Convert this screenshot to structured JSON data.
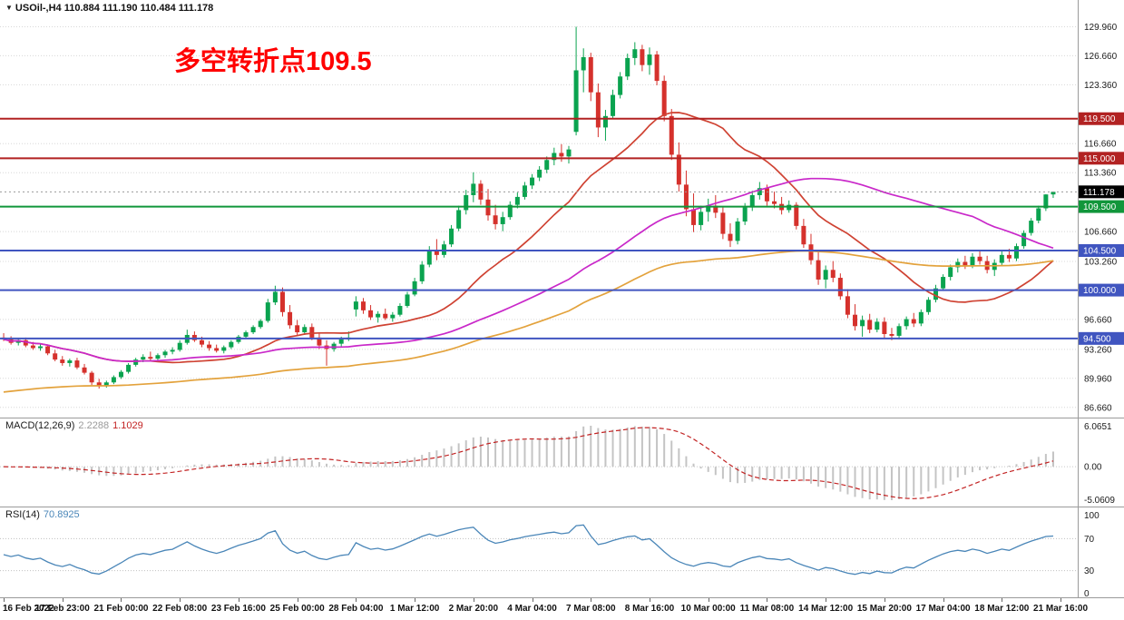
{
  "title_bar": {
    "collapse_icon": "▼",
    "symbol": "USOil-,H4",
    "ohlc_text": "110.884 111.190 110.484 111.178"
  },
  "annotation": {
    "text": "多空转折点109.5",
    "color": "#ff0000"
  },
  "chart_data": {
    "type": "candlestick",
    "symbol": "USOil",
    "timeframe": "H4",
    "current": {
      "open": 110.884,
      "high": 111.19,
      "low": 110.484,
      "close": 111.178
    },
    "current_price_label": "111.178",
    "price_axis": {
      "min": 85.5,
      "max": 133.0,
      "ticks": [
        "129.960",
        "126.660",
        "123.360",
        "116.660",
        "113.360",
        "106.660",
        "103.260",
        "96.660",
        "93.260",
        "89.960",
        "86.660"
      ]
    },
    "hlines": [
      {
        "price": 119.5,
        "label": "119.500",
        "color": "#b22222"
      },
      {
        "price": 115.0,
        "label": "115.000",
        "color": "#b22222"
      },
      {
        "price": 109.5,
        "label": "109.500",
        "color": "#11963b"
      },
      {
        "price": 104.5,
        "label": "104.500",
        "color": "#4055c0"
      },
      {
        "price": 100.0,
        "label": "100.000",
        "color": "#4055c0"
      },
      {
        "price": 94.5,
        "label": "94.500",
        "color": "#4055c0"
      }
    ],
    "overlays": [
      {
        "name": "ma-fast-red-line",
        "type": "sma",
        "period": 21,
        "color": "#cf4232"
      },
      {
        "name": "ma-mid-magenta-line",
        "type": "sma",
        "period": 55,
        "color": "#c928c9"
      },
      {
        "name": "ma-slow-orange-line",
        "type": "ema",
        "period": 120,
        "seed": 88.3,
        "color": "#e3a23c"
      }
    ],
    "colors": {
      "bull": "#0aa34f",
      "bear": "#d5312c",
      "grid": "#d8d8d8",
      "axis_border": "#9b9b9b",
      "current_badge": "#000000"
    },
    "x_label_step": 8,
    "x_labels": [
      "16 Feb 2022",
      "17 Feb 23:00",
      "21 Feb 00:00",
      "22 Feb 08:00",
      "23 Feb 16:00",
      "25 Feb 00:00",
      "28 Feb 04:00",
      "1 Mar 12:00",
      "2 Mar 20:00",
      "4 Mar 04:00",
      "7 Mar 08:00",
      "8 Mar 16:00",
      "10 Mar 00:00",
      "11 Mar 08:00",
      "14 Mar 12:00",
      "15 Mar 20:00",
      "17 Mar 04:00",
      "18 Mar 12:00",
      "21 Mar 16:00"
    ],
    "candles": [
      [
        94.6,
        95.1,
        94.2,
        94.4
      ],
      [
        94.4,
        94.75,
        93.8,
        94.0
      ],
      [
        94.0,
        94.5,
        93.7,
        94.3
      ],
      [
        94.3,
        94.6,
        93.5,
        93.7
      ],
      [
        93.7,
        94.1,
        93.2,
        93.4
      ],
      [
        93.4,
        93.9,
        93.1,
        93.6
      ],
      [
        93.6,
        93.8,
        92.6,
        92.8
      ],
      [
        92.8,
        93.2,
        91.9,
        92.1
      ],
      [
        92.1,
        92.5,
        91.4,
        91.7
      ],
      [
        91.7,
        92.2,
        91.3,
        92.0
      ],
      [
        92.0,
        92.3,
        91.0,
        91.2
      ],
      [
        91.2,
        91.6,
        90.4,
        90.6
      ],
      [
        90.6,
        90.8,
        89.2,
        89.5
      ],
      [
        89.5,
        89.9,
        88.8,
        89.1
      ],
      [
        89.1,
        89.7,
        88.9,
        89.5
      ],
      [
        89.5,
        90.3,
        89.3,
        90.1
      ],
      [
        90.1,
        90.9,
        89.9,
        90.7
      ],
      [
        90.7,
        91.7,
        90.5,
        91.5
      ],
      [
        91.5,
        92.3,
        91.3,
        92.1
      ],
      [
        92.1,
        92.7,
        91.8,
        92.4
      ],
      [
        92.4,
        93.0,
        92.0,
        92.2
      ],
      [
        92.2,
        92.8,
        91.9,
        92.6
      ],
      [
        92.6,
        93.2,
        92.3,
        93.0
      ],
      [
        93.0,
        93.5,
        92.7,
        93.2
      ],
      [
        93.2,
        94.3,
        93.0,
        94.0
      ],
      [
        94.0,
        95.5,
        93.8,
        94.9
      ],
      [
        94.9,
        95.3,
        94.1,
        94.3
      ],
      [
        94.3,
        94.7,
        93.5,
        93.8
      ],
      [
        93.8,
        94.2,
        93.1,
        93.4
      ],
      [
        93.4,
        93.8,
        92.9,
        93.1
      ],
      [
        93.1,
        93.7,
        92.8,
        93.5
      ],
      [
        93.5,
        94.3,
        93.3,
        94.1
      ],
      [
        94.1,
        94.9,
        93.9,
        94.7
      ],
      [
        94.7,
        95.4,
        94.5,
        95.2
      ],
      [
        95.2,
        96.0,
        95.0,
        95.8
      ],
      [
        95.8,
        96.7,
        95.6,
        96.5
      ],
      [
        96.5,
        99.0,
        96.3,
        98.6
      ],
      [
        98.6,
        100.5,
        98.3,
        99.8
      ],
      [
        99.8,
        100.3,
        97.0,
        97.5
      ],
      [
        97.5,
        98.3,
        95.6,
        96.0
      ],
      [
        96.0,
        96.6,
        94.8,
        95.2
      ],
      [
        95.2,
        96.1,
        94.9,
        95.8
      ],
      [
        95.8,
        96.2,
        94.3,
        94.6
      ],
      [
        94.6,
        95.1,
        93.3,
        93.7
      ],
      [
        93.7,
        94.3,
        91.4,
        93.3
      ],
      [
        93.3,
        94.1,
        93.0,
        93.9
      ],
      [
        93.9,
        94.7,
        93.6,
        94.4
      ],
      [
        94.4,
        95.3,
        94.2,
        94.6
      ],
      [
        97.8,
        99.3,
        97.0,
        98.7
      ],
      [
        98.7,
        99.1,
        97.3,
        97.7
      ],
      [
        97.7,
        98.3,
        96.6,
        96.9
      ],
      [
        96.9,
        97.6,
        96.3,
        97.3
      ],
      [
        97.3,
        97.9,
        96.6,
        96.8
      ],
      [
        96.8,
        97.5,
        96.4,
        97.2
      ],
      [
        97.2,
        98.5,
        97.0,
        98.2
      ],
      [
        98.2,
        99.8,
        98.0,
        99.5
      ],
      [
        99.5,
        101.4,
        99.3,
        101.0
      ],
      [
        101.0,
        103.3,
        100.7,
        102.9
      ],
      [
        102.9,
        105.0,
        102.6,
        104.5
      ],
      [
        104.5,
        105.8,
        103.4,
        104.0
      ],
      [
        104.0,
        105.6,
        103.7,
        105.2
      ],
      [
        105.2,
        107.4,
        104.9,
        107.0
      ],
      [
        107.0,
        109.6,
        106.7,
        109.1
      ],
      [
        109.1,
        111.4,
        108.6,
        110.8
      ],
      [
        110.8,
        113.4,
        110.0,
        112.1
      ],
      [
        112.1,
        112.5,
        109.7,
        110.3
      ],
      [
        110.3,
        111.5,
        107.9,
        108.5
      ],
      [
        108.5,
        109.7,
        106.9,
        107.5
      ],
      [
        107.5,
        108.9,
        106.7,
        108.3
      ],
      [
        108.3,
        110.1,
        108.0,
        109.7
      ],
      [
        109.7,
        111.1,
        109.3,
        110.6
      ],
      [
        110.6,
        112.3,
        110.3,
        111.9
      ],
      [
        111.9,
        113.2,
        111.5,
        112.8
      ],
      [
        112.8,
        114.1,
        112.4,
        113.7
      ],
      [
        113.7,
        115.2,
        113.3,
        114.8
      ],
      [
        114.8,
        116.2,
        114.2,
        115.6
      ],
      [
        115.6,
        116.6,
        114.6,
        115.2
      ],
      [
        115.2,
        116.4,
        114.4,
        116.0
      ],
      [
        118.0,
        129.96,
        117.6,
        125.0
      ],
      [
        125.0,
        127.5,
        122.5,
        126.5
      ],
      [
        126.5,
        127.0,
        121.5,
        122.5
      ],
      [
        122.5,
        123.5,
        117.4,
        118.5
      ],
      [
        118.5,
        120.5,
        117.0,
        119.8
      ],
      [
        119.8,
        122.8,
        119.5,
        122.2
      ],
      [
        122.2,
        124.8,
        121.8,
        124.3
      ],
      [
        124.3,
        126.9,
        123.9,
        126.4
      ],
      [
        126.4,
        128.2,
        125.6,
        127.4
      ],
      [
        127.4,
        127.9,
        124.9,
        125.6
      ],
      [
        125.6,
        127.6,
        124.5,
        126.8
      ],
      [
        126.8,
        127.2,
        123.3,
        123.8
      ],
      [
        123.8,
        124.4,
        119.2,
        119.8
      ],
      [
        119.8,
        120.6,
        114.8,
        115.4
      ],
      [
        115.4,
        116.8,
        111.2,
        112.0
      ],
      [
        112.0,
        113.6,
        108.4,
        109.2
      ],
      [
        109.2,
        111.0,
        106.6,
        107.4
      ],
      [
        107.4,
        109.6,
        106.8,
        108.9
      ],
      [
        108.9,
        110.4,
        107.8,
        109.6
      ],
      [
        109.6,
        110.8,
        108.2,
        108.8
      ],
      [
        108.8,
        109.4,
        105.8,
        106.4
      ],
      [
        106.4,
        107.6,
        104.9,
        105.6
      ],
      [
        105.6,
        108.2,
        105.2,
        107.8
      ],
      [
        107.8,
        109.9,
        107.4,
        109.4
      ],
      [
        109.4,
        111.3,
        109.0,
        110.8
      ],
      [
        110.8,
        112.3,
        110.3,
        111.6
      ],
      [
        111.6,
        112.0,
        109.6,
        110.1
      ],
      [
        110.1,
        111.2,
        109.3,
        109.8
      ],
      [
        109.8,
        110.6,
        108.6,
        109.1
      ],
      [
        109.1,
        110.2,
        108.8,
        109.7
      ],
      [
        109.7,
        110.0,
        106.9,
        107.3
      ],
      [
        107.3,
        108.1,
        104.8,
        105.2
      ],
      [
        105.2,
        106.4,
        102.9,
        103.4
      ],
      [
        103.4,
        104.6,
        100.6,
        101.2
      ],
      [
        101.2,
        102.8,
        100.2,
        102.3
      ],
      [
        102.3,
        103.3,
        100.9,
        101.4
      ],
      [
        101.4,
        101.9,
        98.9,
        99.3
      ],
      [
        99.3,
        100.1,
        96.8,
        97.2
      ],
      [
        97.2,
        98.4,
        95.4,
        95.9
      ],
      [
        95.9,
        97.1,
        94.7,
        96.6
      ],
      [
        96.6,
        97.3,
        95.1,
        95.5
      ],
      [
        95.5,
        96.8,
        95.2,
        96.4
      ],
      [
        96.4,
        96.9,
        94.5,
        95.0
      ],
      [
        95.0,
        95.7,
        94.3,
        94.8
      ],
      [
        94.8,
        96.2,
        94.4,
        95.9
      ],
      [
        95.9,
        97.0,
        95.5,
        96.7
      ],
      [
        96.7,
        97.4,
        95.8,
        96.2
      ],
      [
        96.2,
        97.8,
        95.9,
        97.5
      ],
      [
        97.5,
        99.2,
        97.2,
        98.9
      ],
      [
        98.9,
        100.6,
        98.6,
        100.2
      ],
      [
        100.2,
        101.8,
        99.9,
        101.5
      ],
      [
        101.5,
        102.9,
        101.1,
        102.6
      ],
      [
        102.6,
        103.6,
        102.0,
        103.2
      ],
      [
        103.2,
        103.9,
        102.4,
        102.8
      ],
      [
        102.8,
        104.2,
        102.5,
        103.8
      ],
      [
        103.8,
        104.6,
        102.9,
        103.3
      ],
      [
        103.3,
        103.9,
        101.9,
        102.3
      ],
      [
        102.3,
        103.5,
        101.6,
        103.1
      ],
      [
        103.1,
        104.4,
        102.8,
        104.0
      ],
      [
        104.0,
        104.7,
        103.2,
        103.6
      ],
      [
        103.6,
        105.3,
        103.3,
        105.0
      ],
      [
        105.0,
        106.8,
        104.7,
        106.5
      ],
      [
        106.5,
        108.2,
        106.2,
        107.9
      ],
      [
        107.9,
        109.6,
        107.6,
        109.3
      ],
      [
        109.3,
        110.9,
        109.0,
        110.88
      ],
      [
        110.884,
        111.19,
        110.484,
        111.178
      ]
    ],
    "indicators": [
      {
        "name": "MACD",
        "label": "MACD(12,26,9)",
        "params": [
          12,
          26,
          9
        ],
        "values_text": [
          "2.2288",
          "1.1029"
        ],
        "axis_labels": {
          "top": "6.0651",
          "zero": "0.00",
          "bottom": "-5.0609"
        },
        "histogram_color": "#c4c4c4",
        "signal_color": "#c22222"
      },
      {
        "name": "RSI",
        "label": "RSI(14)",
        "period": 14,
        "value_text": "70.8925",
        "levels": [
          70,
          30
        ],
        "axis_labels": [
          "100",
          "70",
          "30",
          "0"
        ],
        "line_color": "#4a86b8"
      }
    ]
  }
}
